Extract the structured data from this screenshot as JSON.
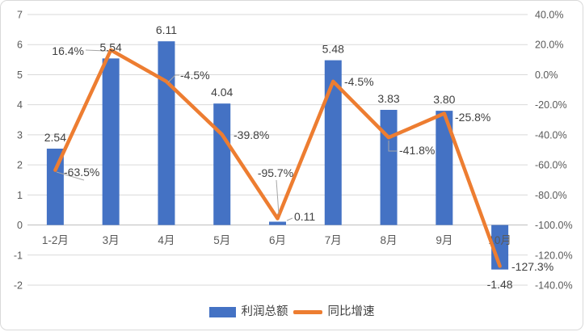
{
  "chart_data": {
    "type": "combo-bar-line",
    "title": "",
    "categories": [
      "1-2月",
      "3月",
      "4月",
      "5月",
      "6月",
      "7月",
      "8月",
      "9月",
      "10月"
    ],
    "series": [
      {
        "name": "利润总额",
        "type": "bar",
        "axis": "left",
        "color": "#4472C4",
        "values": [
          2.54,
          5.54,
          6.11,
          4.04,
          0.11,
          5.48,
          3.83,
          3.8,
          -1.48
        ],
        "labels": [
          "2.54",
          "5.54",
          "6.11",
          "4.04",
          "0.11",
          "5.48",
          "3.83",
          "3.80",
          "-1.48"
        ]
      },
      {
        "name": "同比增速",
        "type": "line",
        "axis": "right",
        "color": "#ED7D31",
        "values": [
          -63.5,
          16.4,
          -4.5,
          -39.8,
          -95.7,
          -4.5,
          -41.8,
          -25.8,
          -127.3
        ],
        "labels": [
          "-63.5%",
          "16.4%",
          "-4.5%",
          "-39.8%",
          "-95.7%",
          "-4.5%",
          "-41.8%",
          "-25.8%",
          "-127.3%"
        ]
      }
    ],
    "left_axis": {
      "min": -2,
      "max": 7,
      "step": 1,
      "ticks": [
        "7",
        "6",
        "5",
        "4",
        "3",
        "2",
        "1",
        "0",
        "-1",
        "-2"
      ]
    },
    "right_axis": {
      "min": -140,
      "max": 40,
      "step": 20,
      "ticks": [
        "40.0%",
        "20.0%",
        "0.0%",
        "-20.0%",
        "-40.0%",
        "-60.0%",
        "-80.0%",
        "-100.0%",
        "-120.0%",
        "-140.0%"
      ]
    },
    "grid": true,
    "legend": {
      "position": "bottom",
      "items": [
        {
          "label": "利润总额",
          "marker": "rect",
          "color": "#4472C4"
        },
        {
          "label": "同比增速",
          "marker": "line",
          "color": "#ED7D31"
        }
      ]
    }
  },
  "colors": {
    "bar": "#4472C4",
    "line": "#ED7D31",
    "grid": "#D9D9D9",
    "zero_line": "#BFBFBF",
    "data_label_text": "#404040",
    "axis_text": "#595959",
    "leader_line": "#A6A6A6",
    "frame_border": "#D9D9D9",
    "background": "#FFFFFF"
  }
}
